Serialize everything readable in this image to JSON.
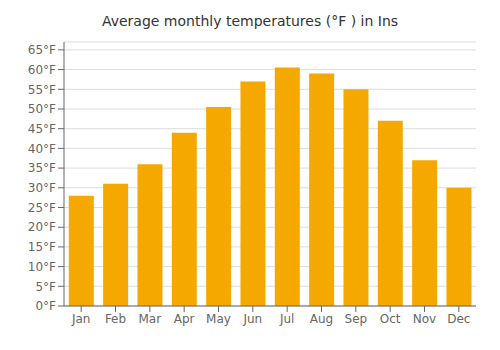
{
  "chart_data": {
    "type": "bar",
    "title": "Average monthly temperatures (°F ) in Ins",
    "categories": [
      "Jan",
      "Feb",
      "Mar",
      "Apr",
      "May",
      "Jun",
      "Jul",
      "Aug",
      "Sep",
      "Oct",
      "Nov",
      "Dec"
    ],
    "values": [
      28,
      31,
      36,
      44,
      50.5,
      57,
      60.5,
      59,
      55,
      47,
      37,
      30
    ],
    "color": "#F5A800",
    "ylim": [
      0,
      67
    ],
    "yticks": [
      {
        "value": 0,
        "label": "0°F"
      },
      {
        "value": 5,
        "label": "5°F"
      },
      {
        "value": 10,
        "label": "10°F"
      },
      {
        "value": 15,
        "label": "15°F"
      },
      {
        "value": 20,
        "label": "20°F"
      },
      {
        "value": 25,
        "label": "25°F"
      },
      {
        "value": 30,
        "label": "30°F"
      },
      {
        "value": 35,
        "label": "35°F"
      },
      {
        "value": 40,
        "label": "40°F"
      },
      {
        "value": 45,
        "label": "45°F"
      },
      {
        "value": 50,
        "label": "50°F"
      },
      {
        "value": 55,
        "label": "55°F"
      },
      {
        "value": 60,
        "label": "60°F"
      },
      {
        "value": 65,
        "label": "65°F"
      }
    ],
    "grid": true
  }
}
